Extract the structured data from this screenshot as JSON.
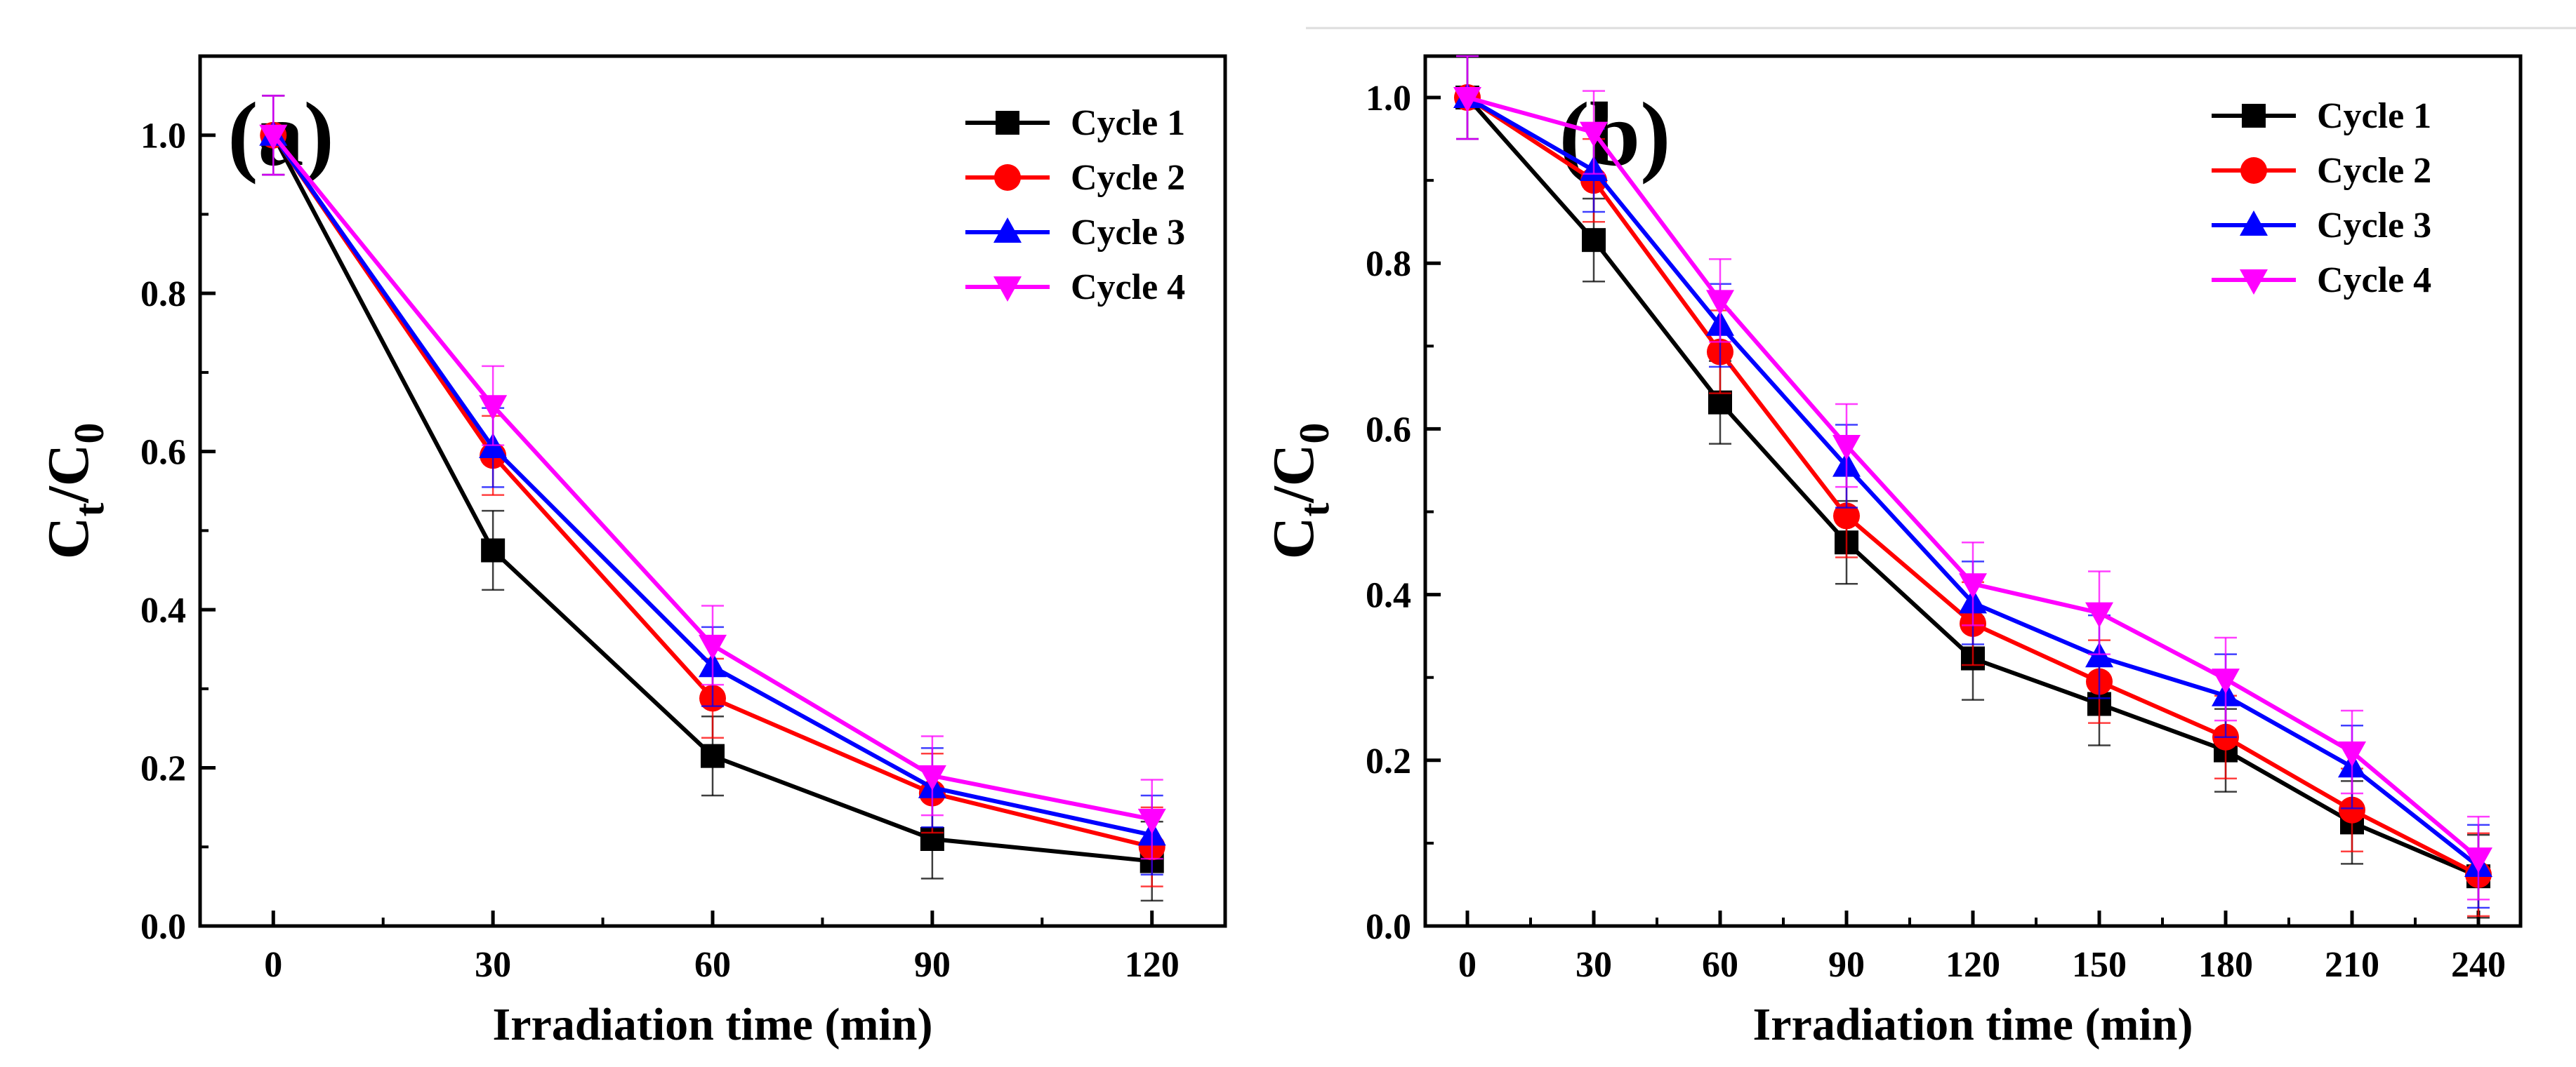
{
  "figure": {
    "colors": {
      "Cycle 1": "#000000",
      "Cycle 2": "#ff0000",
      "Cycle 3": "#0000ff",
      "Cycle 4": "#ff00ff"
    }
  },
  "chart_data": [
    {
      "type": "line",
      "panel_label": "(a)",
      "xlabel": "Irradiation time (min)",
      "ylabel": "Ct/C0",
      "xlim": [
        -10,
        130
      ],
      "ylim": [
        0,
        1.1
      ],
      "xticks": [
        0,
        30,
        60,
        90,
        120
      ],
      "yticks": [
        0.0,
        0.2,
        0.4,
        0.6,
        0.8,
        1.0
      ],
      "xtick_labels": [
        "0",
        "30",
        "60",
        "90",
        "120"
      ],
      "ytick_labels": [
        "0.0",
        "0.2",
        "0.4",
        "0.6",
        "0.8",
        "1.0"
      ],
      "legend_position": "top-right",
      "x": [
        0,
        30,
        60,
        90,
        120
      ],
      "series": [
        {
          "name": "Cycle 1",
          "marker": "square",
          "values": [
            1.0,
            0.475,
            0.215,
            0.11,
            0.082
          ],
          "errors": [
            0.05,
            0.05,
            0.05,
            0.05,
            0.05
          ]
        },
        {
          "name": "Cycle 2",
          "marker": "circle",
          "values": [
            1.0,
            0.595,
            0.288,
            0.168,
            0.1
          ],
          "errors": [
            0.05,
            0.05,
            0.05,
            0.05,
            0.05
          ]
        },
        {
          "name": "Cycle 3",
          "marker": "triangle-up",
          "values": [
            1.0,
            0.605,
            0.328,
            0.175,
            0.115
          ],
          "errors": [
            0.05,
            0.05,
            0.05,
            0.05,
            0.05
          ]
        },
        {
          "name": "Cycle 4",
          "marker": "triangle-down",
          "values": [
            1.0,
            0.658,
            0.355,
            0.19,
            0.135
          ],
          "errors": [
            0.05,
            0.05,
            0.05,
            0.05,
            0.05
          ]
        }
      ]
    },
    {
      "type": "line",
      "panel_label": "(b)",
      "xlabel": "Irradiation time (min)",
      "ylabel": "Ct/C0",
      "xlim": [
        -10,
        250
      ],
      "ylim": [
        0,
        1.05
      ],
      "xticks": [
        0,
        30,
        60,
        90,
        120,
        150,
        180,
        210,
        240
      ],
      "yticks": [
        0.0,
        0.2,
        0.4,
        0.6,
        0.8,
        1.0
      ],
      "xtick_labels": [
        "0",
        "30",
        "60",
        "90",
        "120",
        "150",
        "180",
        "210",
        "240"
      ],
      "ytick_labels": [
        "0.0",
        "0.2",
        "0.4",
        "0.6",
        "0.8",
        "1.0"
      ],
      "legend_position": "top-right",
      "x": [
        0,
        30,
        60,
        90,
        120,
        150,
        180,
        210,
        240
      ],
      "series": [
        {
          "name": "Cycle 1",
          "marker": "square",
          "values": [
            1.0,
            0.828,
            0.632,
            0.463,
            0.323,
            0.268,
            0.212,
            0.125,
            0.06
          ],
          "errors": [
            0.05,
            0.05,
            0.05,
            0.05,
            0.05,
            0.05,
            0.05,
            0.05,
            0.05
          ]
        },
        {
          "name": "Cycle 2",
          "marker": "circle",
          "values": [
            1.0,
            0.9,
            0.693,
            0.495,
            0.365,
            0.295,
            0.228,
            0.14,
            0.062
          ],
          "errors": [
            0.05,
            0.05,
            0.05,
            0.05,
            0.05,
            0.05,
            0.05,
            0.05,
            0.05
          ]
        },
        {
          "name": "Cycle 3",
          "marker": "triangle-up",
          "values": [
            1.0,
            0.912,
            0.725,
            0.555,
            0.39,
            0.325,
            0.278,
            0.192,
            0.072
          ],
          "errors": [
            0.05,
            0.05,
            0.05,
            0.05,
            0.05,
            0.05,
            0.05,
            0.05,
            0.05
          ]
        },
        {
          "name": "Cycle 4",
          "marker": "triangle-down",
          "values": [
            1.0,
            0.958,
            0.755,
            0.58,
            0.413,
            0.378,
            0.298,
            0.21,
            0.082
          ],
          "errors": [
            0.05,
            0.05,
            0.05,
            0.05,
            0.05,
            0.05,
            0.05,
            0.05,
            0.05
          ]
        }
      ]
    }
  ]
}
